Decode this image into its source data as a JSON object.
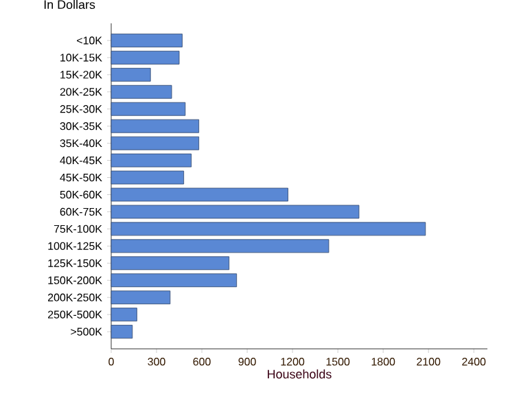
{
  "chart_data": {
    "type": "bar",
    "orientation": "horizontal",
    "ylabel": "In Dollars",
    "xlabel": "Households",
    "categories": [
      "<10K",
      "10K-15K",
      "15K-20K",
      "20K-25K",
      "25K-30K",
      "30K-35K",
      "35K-40K",
      "40K-45K",
      "45K-50K",
      "50K-60K",
      "60K-75K",
      "75K-100K",
      "100K-125K",
      "125K-150K",
      "150K-200K",
      "200K-250K",
      "250K-500K",
      ">500K"
    ],
    "values": [
      470,
      450,
      260,
      400,
      490,
      580,
      580,
      530,
      480,
      1170,
      1640,
      2080,
      1440,
      780,
      830,
      390,
      170,
      140
    ],
    "color": "#5a88d4",
    "xlim": [
      0,
      2490
    ],
    "xticks": [
      0,
      300,
      600,
      900,
      1200,
      1500,
      1800,
      2100,
      2400
    ]
  }
}
